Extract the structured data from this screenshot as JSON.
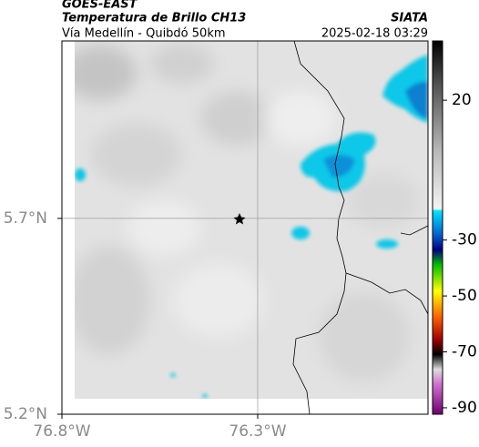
{
  "header": {
    "source": "GOES-EAST",
    "product": "Temperatura de Brillo CH13",
    "region": "Vía Medellín - Quibdó 50km",
    "org": "SIATA",
    "datetime": "2025-02-18 03:29"
  },
  "map": {
    "xlim": [
      -76.8,
      -75.865
    ],
    "ylim": [
      5.2,
      6.153
    ],
    "xticks": [
      {
        "value": -76.8,
        "label": "76.8°W"
      },
      {
        "value": -76.3,
        "label": "76.3°W"
      }
    ],
    "yticks": [
      {
        "value": 5.2,
        "label": "5.2°N"
      },
      {
        "value": 5.7,
        "label": "5.7°N"
      }
    ],
    "grid": true,
    "colorbar": {
      "lim": [
        -92.3,
        41.2
      ],
      "ticks": [
        20,
        -30,
        -50,
        -70,
        -90
      ]
    }
  }
}
